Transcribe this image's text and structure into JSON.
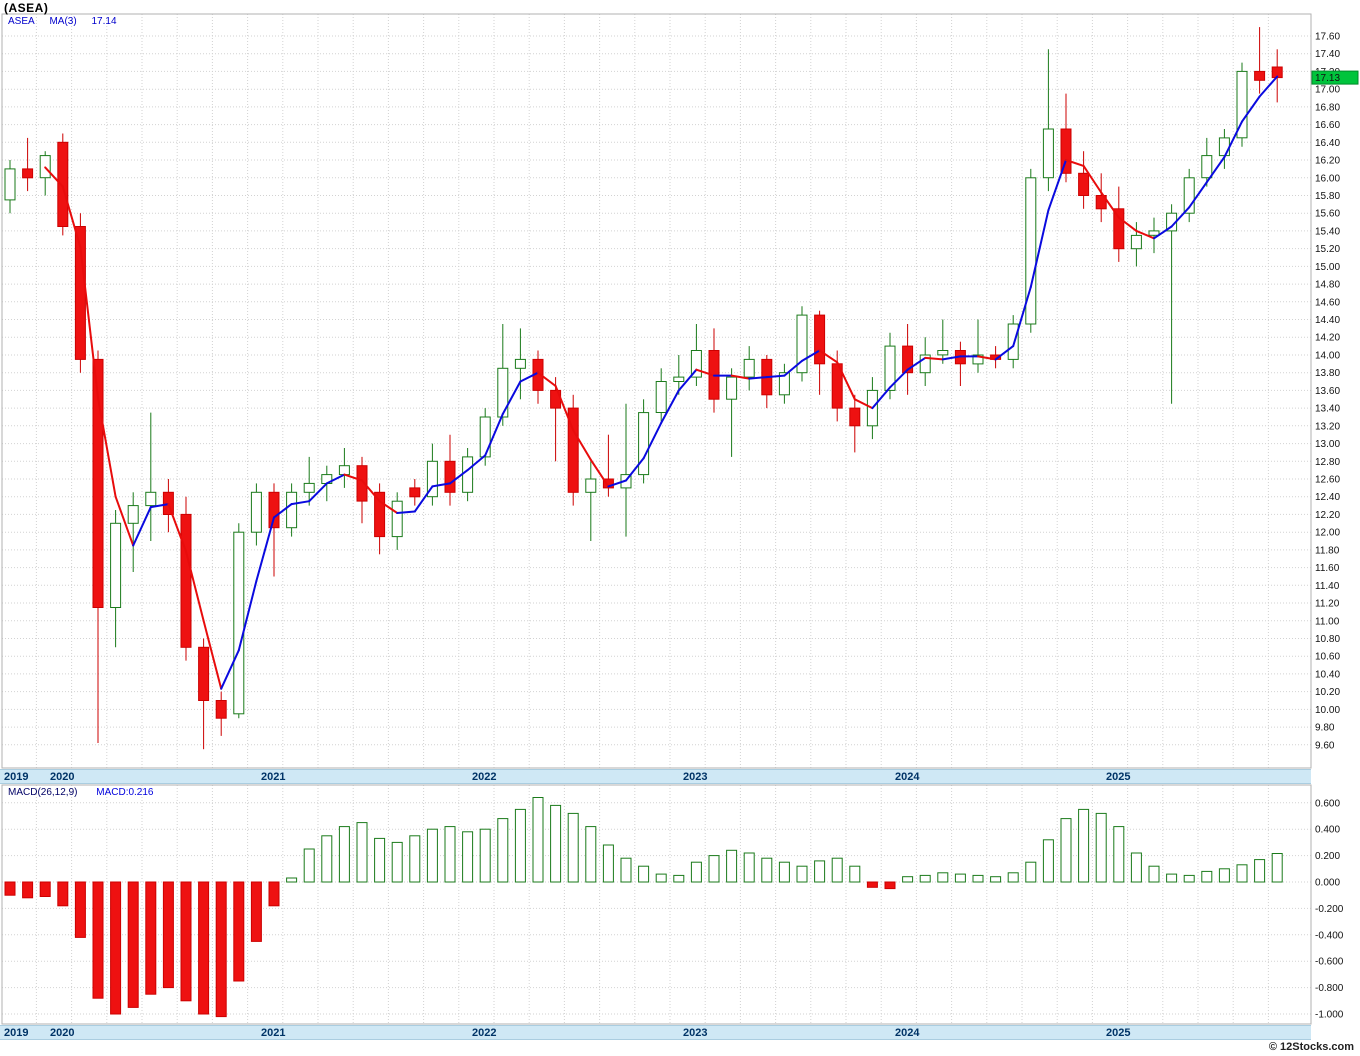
{
  "header": {
    "title": "(ASEA)",
    "legend_symbol": "ASEA",
    "legend_ma": "MA(3)",
    "legend_ma_value": "17.14"
  },
  "macd_panel": {
    "legend_formula": "MACD(26,12,9)",
    "legend_value": "MACD:0.216"
  },
  "footer": {
    "credit": "© 12Stocks.com"
  },
  "colors": {
    "up_border": "#1a7a1a",
    "down": "#ee1111",
    "down_border": "#cc0000",
    "ma_up": "#0a0adf",
    "ma_down": "#e80c0c",
    "tag_bg": "#00c43c",
    "strip_bg": "#cfe8f5",
    "year_text": "#003366",
    "legend_blue": "#0000cc"
  },
  "chart_data": {
    "type": "candlestick",
    "symbol": "ASEA",
    "ma_period": 3,
    "indicator": "MACD(26,12,9)",
    "indicator_value": 0.216,
    "last_close": 17.13,
    "last_close_label": "17.13",
    "price_axis": {
      "min": 9.6,
      "max": 17.6,
      "step": 0.2
    },
    "macd_axis": {
      "min": -1.0,
      "max": 0.6,
      "step": 0.2
    },
    "years": [
      {
        "label": "2019",
        "month_index": 0
      },
      {
        "label": "2020",
        "month_index": 3
      },
      {
        "label": "2021",
        "month_index": 15
      },
      {
        "label": "2022",
        "month_index": 27
      },
      {
        "label": "2023",
        "month_index": 39
      },
      {
        "label": "2024",
        "month_index": 51
      },
      {
        "label": "2025",
        "month_index": 63
      }
    ],
    "months": [
      "2019-10",
      "2019-11",
      "2019-12",
      "2020-01",
      "2020-02",
      "2020-03",
      "2020-04",
      "2020-05",
      "2020-06",
      "2020-07",
      "2020-08",
      "2020-09",
      "2020-10",
      "2020-11",
      "2020-12",
      "2021-01",
      "2021-02",
      "2021-03",
      "2021-04",
      "2021-05",
      "2021-06",
      "2021-07",
      "2021-08",
      "2021-09",
      "2021-10",
      "2021-11",
      "2021-12",
      "2022-01",
      "2022-02",
      "2022-03",
      "2022-04",
      "2022-05",
      "2022-06",
      "2022-07",
      "2022-08",
      "2022-09",
      "2022-10",
      "2022-11",
      "2022-12",
      "2023-01",
      "2023-02",
      "2023-03",
      "2023-04",
      "2023-05",
      "2023-06",
      "2023-07",
      "2023-08",
      "2023-09",
      "2023-10",
      "2023-11",
      "2023-12",
      "2024-01",
      "2024-02",
      "2024-03",
      "2024-04",
      "2024-05",
      "2024-06",
      "2024-07",
      "2024-08",
      "2024-09",
      "2024-10",
      "2024-11",
      "2024-12",
      "2025-01",
      "2025-02",
      "2025-03",
      "2025-04",
      "2025-05",
      "2025-06",
      "2025-07",
      "2025-08",
      "2025-09",
      "2025-10"
    ],
    "ohlc": [
      [
        15.75,
        16.2,
        15.6,
        16.1
      ],
      [
        16.1,
        16.45,
        15.85,
        16.0
      ],
      [
        16.0,
        16.3,
        15.8,
        16.25
      ],
      [
        16.4,
        16.5,
        15.35,
        15.45
      ],
      [
        15.45,
        15.6,
        13.8,
        13.95
      ],
      [
        13.95,
        14.05,
        9.62,
        11.15
      ],
      [
        11.15,
        12.25,
        10.7,
        12.1
      ],
      [
        12.1,
        12.45,
        11.55,
        12.3
      ],
      [
        12.3,
        13.35,
        11.9,
        12.45
      ],
      [
        12.45,
        12.6,
        12.0,
        12.2
      ],
      [
        12.2,
        12.4,
        10.55,
        10.7
      ],
      [
        10.7,
        10.8,
        9.55,
        10.1
      ],
      [
        10.1,
        10.2,
        9.7,
        9.9
      ],
      [
        9.95,
        12.1,
        9.9,
        12.0
      ],
      [
        12.0,
        12.55,
        11.85,
        12.45
      ],
      [
        12.45,
        12.55,
        11.5,
        12.05
      ],
      [
        12.05,
        12.55,
        11.95,
        12.45
      ],
      [
        12.45,
        12.85,
        12.3,
        12.55
      ],
      [
        12.55,
        12.75,
        12.35,
        12.65
      ],
      [
        12.65,
        12.95,
        12.5,
        12.75
      ],
      [
        12.75,
        12.85,
        12.1,
        12.35
      ],
      [
        12.45,
        12.55,
        11.75,
        11.95
      ],
      [
        11.95,
        12.45,
        11.8,
        12.35
      ],
      [
        12.5,
        12.6,
        12.3,
        12.4
      ],
      [
        12.4,
        13.0,
        12.3,
        12.8
      ],
      [
        12.8,
        13.1,
        12.3,
        12.45
      ],
      [
        12.45,
        12.95,
        12.35,
        12.85
      ],
      [
        12.85,
        13.4,
        12.75,
        13.3
      ],
      [
        13.3,
        14.35,
        13.2,
        13.85
      ],
      [
        13.85,
        14.3,
        13.5,
        13.95
      ],
      [
        13.95,
        14.05,
        13.45,
        13.6
      ],
      [
        13.6,
        13.75,
        12.8,
        13.4
      ],
      [
        13.4,
        13.55,
        12.3,
        12.45
      ],
      [
        12.45,
        12.8,
        11.9,
        12.6
      ],
      [
        12.6,
        13.1,
        12.4,
        12.5
      ],
      [
        12.5,
        13.45,
        11.95,
        12.65
      ],
      [
        12.65,
        13.5,
        12.55,
        13.35
      ],
      [
        13.35,
        13.85,
        13.25,
        13.7
      ],
      [
        13.7,
        14.0,
        13.55,
        13.75
      ],
      [
        13.75,
        14.35,
        13.65,
        14.05
      ],
      [
        14.05,
        14.3,
        13.35,
        13.5
      ],
      [
        13.5,
        13.85,
        12.85,
        13.75
      ],
      [
        13.75,
        14.1,
        13.6,
        13.95
      ],
      [
        13.95,
        14.0,
        13.4,
        13.55
      ],
      [
        13.55,
        13.9,
        13.45,
        13.8
      ],
      [
        13.8,
        14.55,
        13.7,
        14.45
      ],
      [
        14.45,
        14.5,
        13.55,
        13.9
      ],
      [
        13.9,
        14.05,
        13.25,
        13.4
      ],
      [
        13.4,
        13.55,
        12.9,
        13.2
      ],
      [
        13.2,
        13.75,
        13.05,
        13.6
      ],
      [
        13.6,
        14.25,
        13.5,
        14.1
      ],
      [
        14.1,
        14.35,
        13.55,
        13.8
      ],
      [
        13.8,
        14.2,
        13.65,
        14.0
      ],
      [
        14.0,
        14.4,
        13.9,
        14.05
      ],
      [
        14.05,
        14.15,
        13.65,
        13.9
      ],
      [
        13.9,
        14.4,
        13.8,
        14.0
      ],
      [
        14.0,
        14.1,
        13.85,
        13.95
      ],
      [
        13.95,
        14.45,
        13.85,
        14.35
      ],
      [
        14.35,
        16.1,
        14.25,
        16.0
      ],
      [
        16.0,
        17.45,
        15.85,
        16.55
      ],
      [
        16.55,
        16.95,
        15.95,
        16.05
      ],
      [
        16.05,
        16.3,
        15.65,
        15.8
      ],
      [
        15.8,
        16.05,
        15.5,
        15.65
      ],
      [
        15.65,
        15.9,
        15.05,
        15.2
      ],
      [
        15.2,
        15.5,
        15.0,
        15.35
      ],
      [
        15.35,
        15.55,
        15.15,
        15.4
      ],
      [
        15.4,
        15.7,
        13.45,
        15.6
      ],
      [
        15.6,
        16.1,
        15.5,
        16.0
      ],
      [
        16.0,
        16.45,
        15.9,
        16.25
      ],
      [
        16.25,
        16.55,
        16.1,
        16.45
      ],
      [
        16.45,
        17.3,
        16.35,
        17.2
      ],
      [
        17.2,
        17.7,
        16.95,
        17.1
      ],
      [
        17.25,
        17.45,
        16.85,
        17.13
      ]
    ],
    "macd": [
      -0.1,
      -0.12,
      -0.11,
      -0.18,
      -0.42,
      -0.88,
      -1.0,
      -0.95,
      -0.85,
      -0.8,
      -0.9,
      -1.0,
      -1.02,
      -0.75,
      -0.45,
      -0.18,
      0.03,
      0.25,
      0.35,
      0.42,
      0.45,
      0.33,
      0.3,
      0.35,
      0.4,
      0.42,
      0.38,
      0.4,
      0.48,
      0.55,
      0.64,
      0.58,
      0.52,
      0.42,
      0.28,
      0.18,
      0.12,
      0.06,
      0.05,
      0.15,
      0.2,
      0.24,
      0.22,
      0.18,
      0.15,
      0.12,
      0.16,
      0.18,
      0.12,
      -0.04,
      -0.05,
      0.04,
      0.05,
      0.07,
      0.06,
      0.05,
      0.04,
      0.07,
      0.15,
      0.32,
      0.48,
      0.55,
      0.52,
      0.42,
      0.22,
      0.12,
      0.06,
      0.05,
      0.08,
      0.1,
      0.13,
      0.17,
      0.216
    ]
  }
}
